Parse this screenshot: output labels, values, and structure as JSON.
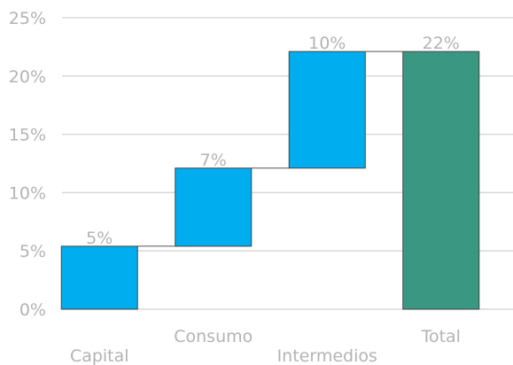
{
  "chart_data": {
    "type": "bar",
    "subtype": "waterfall",
    "categories": [
      "Capital",
      "Consumo",
      "Intermedios",
      "Total"
    ],
    "values": [
      5.4,
      6.7,
      10.0,
      22.1
    ],
    "data_labels": [
      "5%",
      "7%",
      "10%",
      "22%"
    ],
    "is_total": [
      false,
      false,
      false,
      true
    ],
    "y_ticks": [
      "0%",
      "5%",
      "10%",
      "15%",
      "20%",
      "25%"
    ],
    "ylim": [
      0,
      25
    ],
    "grid": true,
    "colors": {
      "increment": "#00aeef",
      "total": "#3a9882",
      "grid": "#d9d9d9",
      "connector": "#555555",
      "text": "#b3b3b3"
    }
  }
}
